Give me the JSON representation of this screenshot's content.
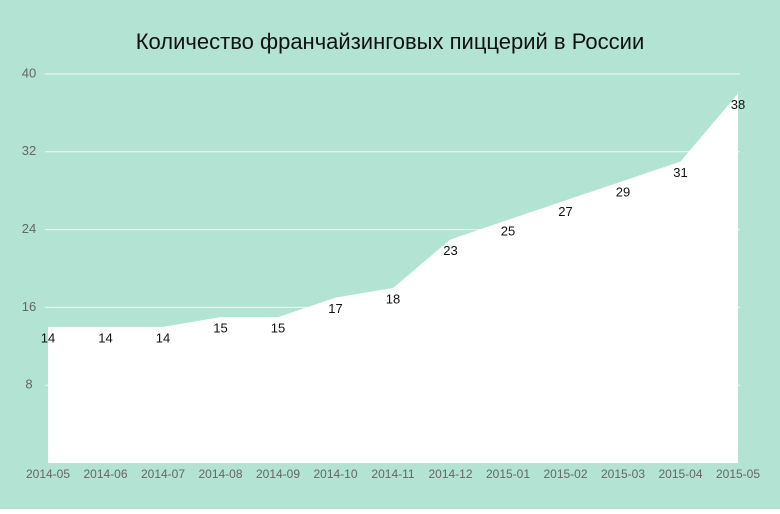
{
  "chart_data": {
    "type": "area",
    "title": "Количество франчайзинговых пиццерий в России",
    "categories": [
      "2014-05",
      "2014-06",
      "2014-07",
      "2014-08",
      "2014-09",
      "2014-10",
      "2014-11",
      "2014-12",
      "2015-01",
      "2015-02",
      "2015-03",
      "2015-04",
      "2015-05"
    ],
    "values": [
      14,
      14,
      14,
      15,
      15,
      17,
      18,
      23,
      25,
      27,
      29,
      31,
      38
    ],
    "color": "#ffffff",
    "background": "#b3e3d2",
    "ylim": [
      0,
      40
    ],
    "yticks": [
      8,
      16,
      24,
      32,
      40
    ],
    "grid": true
  }
}
